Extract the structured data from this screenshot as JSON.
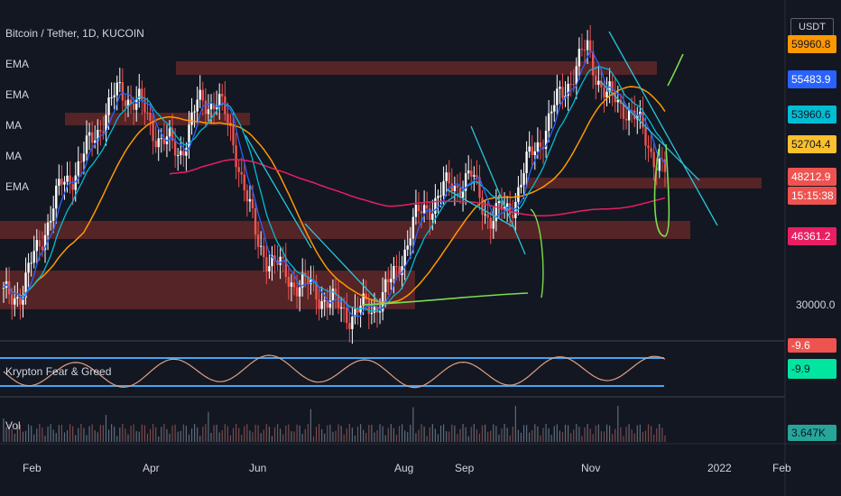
{
  "header": {
    "symbol_title": "Bitcoin / Tether, 1D, KUCOIN",
    "indicators": [
      "EMA",
      "EMA",
      "MA",
      "MA",
      "EMA"
    ],
    "unit": "USDT"
  },
  "price_tags": [
    {
      "label": "59960.8",
      "color": "#ff9800",
      "text_color": "#131722"
    },
    {
      "label": "55483.9",
      "color": "#2962ff",
      "text_color": "#ffffff"
    },
    {
      "label": "53960.6",
      "color": "#00bcd4",
      "text_color": "#131722"
    },
    {
      "label": "52704.4",
      "color": "#fbc02d",
      "text_color": "#131722"
    },
    {
      "label": "48212.9",
      "color": "#ef5350",
      "text_color": "#ffffff"
    },
    {
      "label": "15:15:38",
      "color": "#ef5350",
      "text_color": "#ffffff"
    },
    {
      "label": "46361.2",
      "color": "#e91e63",
      "text_color": "#ffffff"
    }
  ],
  "price_scale_label": "30000.0",
  "osc": {
    "name": "Krypton Fear & Greed",
    "tags": [
      {
        "label": "-9.6",
        "color": "#ef5350",
        "text_color": "#ffffff"
      },
      {
        "label": "-9.9",
        "color": "#00e5a0",
        "text_color": "#131722"
      }
    ]
  },
  "volume": {
    "name": "Vol",
    "tag": {
      "label": "3.647K",
      "color": "#26a69a",
      "text_color": "#131722"
    }
  },
  "time_axis": [
    "Feb",
    "Apr",
    "Jun",
    "Aug",
    "Sep",
    "Nov",
    "2022",
    "Feb"
  ],
  "colors": {
    "bg": "#131722",
    "up": "#ffffff",
    "down": "#ef5350",
    "ema_fast": "#2962ff",
    "ema_mid": "#00bcd4",
    "ma_slow": "#ff9800",
    "ma_long": "#e91e63",
    "zone": "#6b2a2a",
    "trendline": "#26c6da",
    "annotation": "#7cdc4e"
  },
  "chart_data": {
    "type": "candlestick",
    "x": [
      "Feb",
      "Apr",
      "Jun",
      "Aug",
      "Sep",
      "Nov",
      "2022",
      "Feb"
    ],
    "close_path": [
      33000,
      34000,
      41000,
      47000,
      50000,
      55000,
      59000,
      57000,
      53000,
      51000,
      57000,
      58000,
      51000,
      40000,
      37000,
      35000,
      34000,
      32000,
      31000,
      32000,
      35000,
      42000,
      45000,
      47000,
      48000,
      43000,
      44000,
      50000,
      55000,
      60000,
      64000,
      58000,
      57000,
      53000,
      48212.9
    ],
    "series": [
      {
        "name": "EMA"
      },
      {
        "name": "EMA"
      },
      {
        "name": "MA"
      },
      {
        "name": "MA"
      },
      {
        "name": "EMA"
      }
    ],
    "last_price": 48212.9,
    "ylim": [
      28000,
      69000
    ],
    "oscillator": {
      "name": "Krypton Fear & Greed"
    },
    "volume": {
      "name": "Vol"
    }
  }
}
